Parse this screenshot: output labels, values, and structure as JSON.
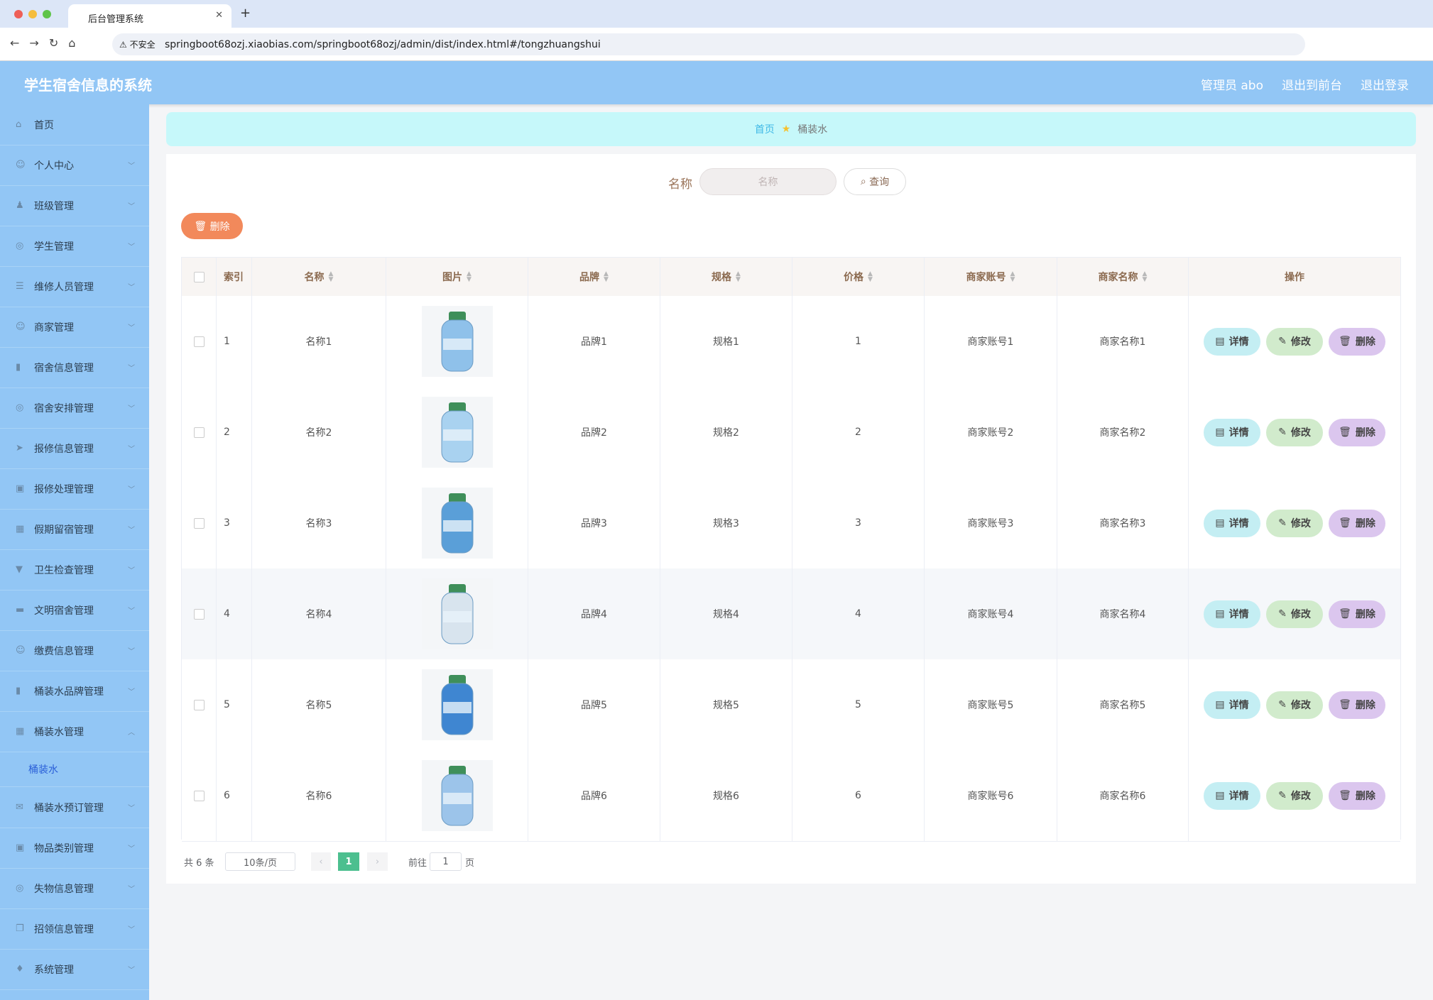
{
  "browser": {
    "tab_title": "后台管理系统",
    "security": "不安全",
    "url": "springboot68ozj.xiaobias.com/springboot68ozj/admin/dist/index.html#/tongzhuangshui"
  },
  "header": {
    "title": "学生宿舍信息的系统",
    "links": [
      "管理员 abo",
      "退出到前台",
      "退出登录"
    ]
  },
  "sidebar": {
    "items": [
      "首页",
      "个人中心",
      "班级管理",
      "学生管理",
      "维修人员管理",
      "商家管理",
      "宿舍信息管理",
      "宿舍安排管理",
      "报修信息管理",
      "报修处理管理",
      "假期留宿管理",
      "卫生检查管理",
      "文明宿舍管理",
      "缴费信息管理",
      "桶装水品牌管理",
      "桶装水管理",
      "桶装水预订管理",
      "物品类别管理",
      "失物信息管理",
      "招领信息管理",
      "系统管理"
    ],
    "submenu": "桶装水"
  },
  "breadcrumb": [
    "首页",
    "桶装水"
  ],
  "search": {
    "label": "名称",
    "placeholder": "名称",
    "button": "查询"
  },
  "toolbar": {
    "delete": "删除"
  },
  "table": {
    "columns": [
      "索引",
      "名称",
      "图片",
      "品牌",
      "规格",
      "价格",
      "商家账号",
      "商家名称",
      "操作"
    ],
    "rows": [
      {
        "index": 1,
        "name": "名称1",
        "brand": "品牌1",
        "spec": "规格1",
        "price": 1,
        "account": "商家账号1",
        "merchant": "商家名称1"
      },
      {
        "index": 2,
        "name": "名称2",
        "brand": "品牌2",
        "spec": "规格2",
        "price": 2,
        "account": "商家账号2",
        "merchant": "商家名称2"
      },
      {
        "index": 3,
        "name": "名称3",
        "brand": "品牌3",
        "spec": "规格3",
        "price": 3,
        "account": "商家账号3",
        "merchant": "商家名称3"
      },
      {
        "index": 4,
        "name": "名称4",
        "brand": "品牌4",
        "spec": "规格4",
        "price": 4,
        "account": "商家账号4",
        "merchant": "商家名称4"
      },
      {
        "index": 5,
        "name": "名称5",
        "brand": "品牌5",
        "spec": "规格5",
        "price": 5,
        "account": "商家账号5",
        "merchant": "商家名称5"
      },
      {
        "index": 6,
        "name": "名称6",
        "brand": "品牌6",
        "spec": "规格6",
        "price": 6,
        "account": "商家账号6",
        "merchant": "商家名称6"
      }
    ],
    "row_buttons": [
      "详情",
      "修改",
      "删除"
    ]
  },
  "pagination": {
    "total": "共 6 条",
    "page_size": "10条/页",
    "current": "1",
    "goto": "前往",
    "goto_value": "1",
    "page_unit": "页"
  }
}
